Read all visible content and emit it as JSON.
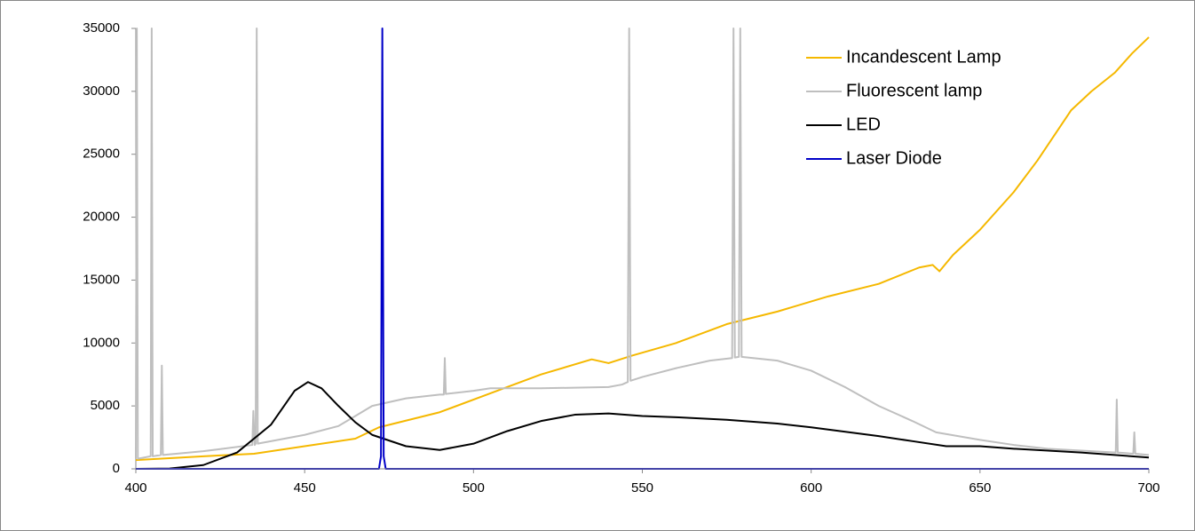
{
  "chart_data": {
    "type": "line",
    "xlim": [
      400,
      700
    ],
    "xticks": [
      400,
      450,
      500,
      550,
      600,
      650,
      700
    ],
    "ylim": [
      0,
      35000
    ],
    "yticks": [
      0,
      5000,
      10000,
      15000,
      20000,
      25000,
      30000,
      35000
    ],
    "grid": false,
    "legend": "top-right",
    "series": [
      {
        "name": "Incandescent Lamp",
        "color": "#f5b800",
        "x": [
          400,
          420,
          435,
          450,
          465,
          472,
          490,
          505,
          520,
          535,
          540,
          547,
          560,
          575,
          590,
          605,
          620,
          632,
          636,
          638,
          642,
          650,
          660,
          667,
          672,
          677,
          683,
          690,
          695,
          700
        ],
        "values": [
          700,
          1000,
          1200,
          1800,
          2400,
          3300,
          4500,
          6000,
          7500,
          8700,
          8400,
          9000,
          10000,
          11500,
          12500,
          13700,
          14700,
          16000,
          16200,
          15700,
          17000,
          19000,
          22000,
          24500,
          26500,
          28500,
          30000,
          31500,
          33000,
          34300
        ]
      },
      {
        "name": "Fluorescent lamp",
        "color": "#bfbfbf",
        "x": [
          400,
          400.3,
          400.6,
          404.4,
          404.7,
          405,
          407.4,
          407.7,
          408,
          420,
          434.5,
          434.8,
          435.2,
          435.5,
          435.8,
          436.1,
          450,
          460,
          465,
          470,
          480,
          490,
          491.2,
          491.5,
          491.8,
          500,
          505,
          520,
          540,
          544,
          545.7,
          546.1,
          546.5,
          550,
          560,
          570,
          576.6,
          577,
          577.4,
          578.6,
          579,
          579.4,
          590,
          600,
          610,
          620,
          630,
          637,
          650,
          660,
          670,
          690.2,
          690.5,
          690.8,
          695.4,
          695.7,
          696,
          700
        ],
        "values": [
          800,
          35000,
          800,
          1000,
          35000,
          1000,
          1100,
          8200,
          1100,
          1400,
          1900,
          4600,
          1900,
          2000,
          35000,
          2000,
          2700,
          3400,
          4200,
          5000,
          5600,
          5900,
          5900,
          8800,
          5950,
          6200,
          6400,
          6400,
          6500,
          6700,
          6900,
          35000,
          7000,
          7300,
          8000,
          8600,
          8800,
          35000,
          8850,
          8900,
          35000,
          8900,
          8600,
          7800,
          6500,
          5000,
          3800,
          2900,
          2300,
          1900,
          1600,
          1300,
          5500,
          1300,
          1200,
          2900,
          1200,
          1100
        ]
      },
      {
        "name": "LED",
        "color": "#000000",
        "x": [
          400,
          410,
          420,
          430,
          440,
          447,
          451,
          455,
          460,
          465,
          470,
          480,
          490,
          500,
          510,
          520,
          530,
          540,
          550,
          560,
          575,
          590,
          600,
          620,
          630,
          640,
          650,
          660,
          680,
          700
        ],
        "values": [
          0,
          30,
          300,
          1300,
          3500,
          6200,
          6900,
          6400,
          5000,
          3700,
          2700,
          1800,
          1500,
          2000,
          3000,
          3800,
          4300,
          4400,
          4200,
          4100,
          3900,
          3600,
          3300,
          2600,
          2200,
          1800,
          1800,
          1600,
          1300,
          900
        ]
      },
      {
        "name": "Laser Diode",
        "color": "#0000c8",
        "x": [
          400,
          472,
          472.6,
          473,
          473.4,
          474,
          700
        ],
        "values": [
          0,
          0,
          1000,
          35000,
          1000,
          0,
          0
        ]
      }
    ]
  }
}
